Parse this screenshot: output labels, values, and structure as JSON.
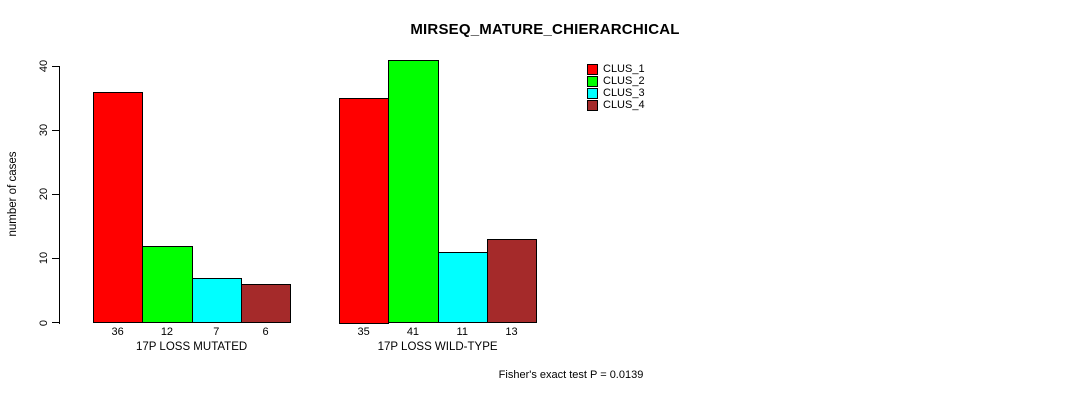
{
  "chart_data": {
    "type": "bar",
    "title": "MIRSEQ_MATURE_CHIERARCHICAL",
    "ylabel": "number of cases",
    "xlabel": "",
    "categories": [
      "17P LOSS MUTATED",
      "17P LOSS WILD-TYPE"
    ],
    "series": [
      {
        "name": "CLUS_1",
        "color": "#ff0000",
        "values": [
          36,
          35
        ]
      },
      {
        "name": "CLUS_2",
        "color": "#00ff00",
        "values": [
          12,
          41
        ]
      },
      {
        "name": "CLUS_3",
        "color": "#00ffff",
        "values": [
          7,
          11
        ]
      },
      {
        "name": "CLUS_4",
        "color": "#a52a2a",
        "values": [
          6,
          13
        ]
      }
    ],
    "yticks": [
      0,
      10,
      20,
      30,
      40
    ],
    "ylim": [
      0,
      40
    ],
    "bar_border_color": "#000000",
    "grid": false,
    "legend_position": "top-right",
    "bar_value_labels_shown": true,
    "annotation": "Fisher's exact test P = 0.0139"
  }
}
